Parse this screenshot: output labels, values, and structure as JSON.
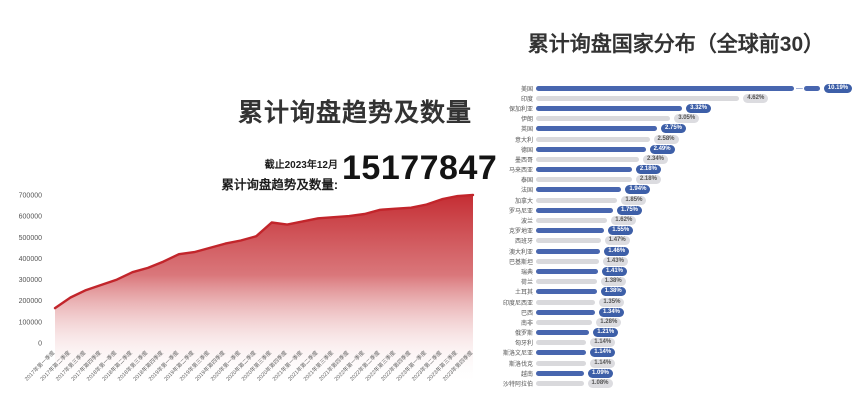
{
  "left_chart": {
    "title": "累计询盘趋势及数量",
    "as_of": "截止2023年12月",
    "total_label": "累计询盘趋势及数量:",
    "total_value": "15177847"
  },
  "right_chart": {
    "title": "累计询盘国家分布（全球前30）"
  },
  "colors": {
    "area_red": "#c2252b",
    "bar_blue": "#4866af",
    "badge_blue": "#3d5fa8",
    "bar_gray": "#d9d9dc",
    "badge_gray": "#dcdce0",
    "title_text": "#333333"
  },
  "chart_data": [
    {
      "type": "area",
      "title": "累计询盘趋势及数量",
      "x": [
        "2017年第一季度",
        "2017年第二季度",
        "2017年第三季度",
        "2017年第四季度",
        "2018年第一季度",
        "2018年第二季度",
        "2018年第三季度",
        "2018年第四季度",
        "2019年第一季度",
        "2019年第二季度",
        "2019年第三季度",
        "2019年第四季度",
        "2020年第一季度",
        "2020年第二季度",
        "2020年第三季度",
        "2020年第四季度",
        "2021年第一季度",
        "2021年第二季度",
        "2021年第三季度",
        "2021年第四季度",
        "2022年第一季度",
        "2022年第二季度",
        "2022年第三季度",
        "2022年第四季度",
        "2023年第一季度",
        "2023年第二季度",
        "2023年第三季度",
        "2023年第四季度"
      ],
      "values": [
        165000,
        215000,
        250000,
        275000,
        300000,
        335000,
        355000,
        385000,
        420000,
        430000,
        450000,
        470000,
        485000,
        505000,
        570000,
        560000,
        575000,
        590000,
        595000,
        600000,
        610000,
        630000,
        635000,
        640000,
        655000,
        680000,
        695000,
        700000
      ],
      "ylim": [
        0,
        700000
      ],
      "yticks": [
        0,
        100000,
        200000,
        300000,
        400000,
        500000,
        600000,
        700000
      ],
      "line_color": "#c2252b",
      "fill": "vertical gradient red to transparent white",
      "grid": false,
      "legend": "none"
    },
    {
      "type": "bar",
      "orientation": "horizontal",
      "title": "累计询盘国家分布（全球前30）",
      "categories": [
        "美国",
        "印度",
        "保加利亚",
        "伊朗",
        "英国",
        "意大利",
        "德国",
        "墨西哥",
        "马来西亚",
        "泰国",
        "法国",
        "加拿大",
        "罗马尼亚",
        "波兰",
        "克罗地亚",
        "西班牙",
        "澳大利亚",
        "巴基斯坦",
        "瑞典",
        "荷兰",
        "土耳其",
        "印度尼西亚",
        "巴西",
        "南非",
        "俄罗斯",
        "匈牙利",
        "斯洛文尼亚",
        "斯洛伐克",
        "越南",
        "沙特阿拉伯"
      ],
      "values": [
        10.19,
        4.62,
        3.32,
        3.05,
        2.75,
        2.58,
        2.49,
        2.34,
        2.18,
        2.18,
        1.94,
        1.85,
        1.75,
        1.62,
        1.55,
        1.47,
        1.46,
        1.43,
        1.41,
        1.38,
        1.38,
        1.35,
        1.34,
        1.28,
        1.21,
        1.14,
        1.14,
        1.14,
        1.09,
        1.08
      ],
      "labels": [
        "10.19%",
        "4.62%",
        "3.32%",
        "3.05%",
        "2.75%",
        "2.58%",
        "2.49%",
        "2.34%",
        "2.18%",
        "2.18%",
        "1.94%",
        "1.85%",
        "1.75%",
        "1.62%",
        "1.55%",
        "1.47%",
        "1.46%",
        "1.43%",
        "1.41%",
        "1.38%",
        "1.38%",
        "1.35%",
        "1.34%",
        "1.28%",
        "1.21%",
        "1.14%",
        "1.14%",
        "1.14%",
        "1.09%",
        "1.08%"
      ],
      "unit": "%",
      "axis_break_on_first_bar": true,
      "alternating_colors": [
        "#4866af",
        "#d9d9dc"
      ],
      "value_badges": true,
      "legend": "none"
    }
  ]
}
